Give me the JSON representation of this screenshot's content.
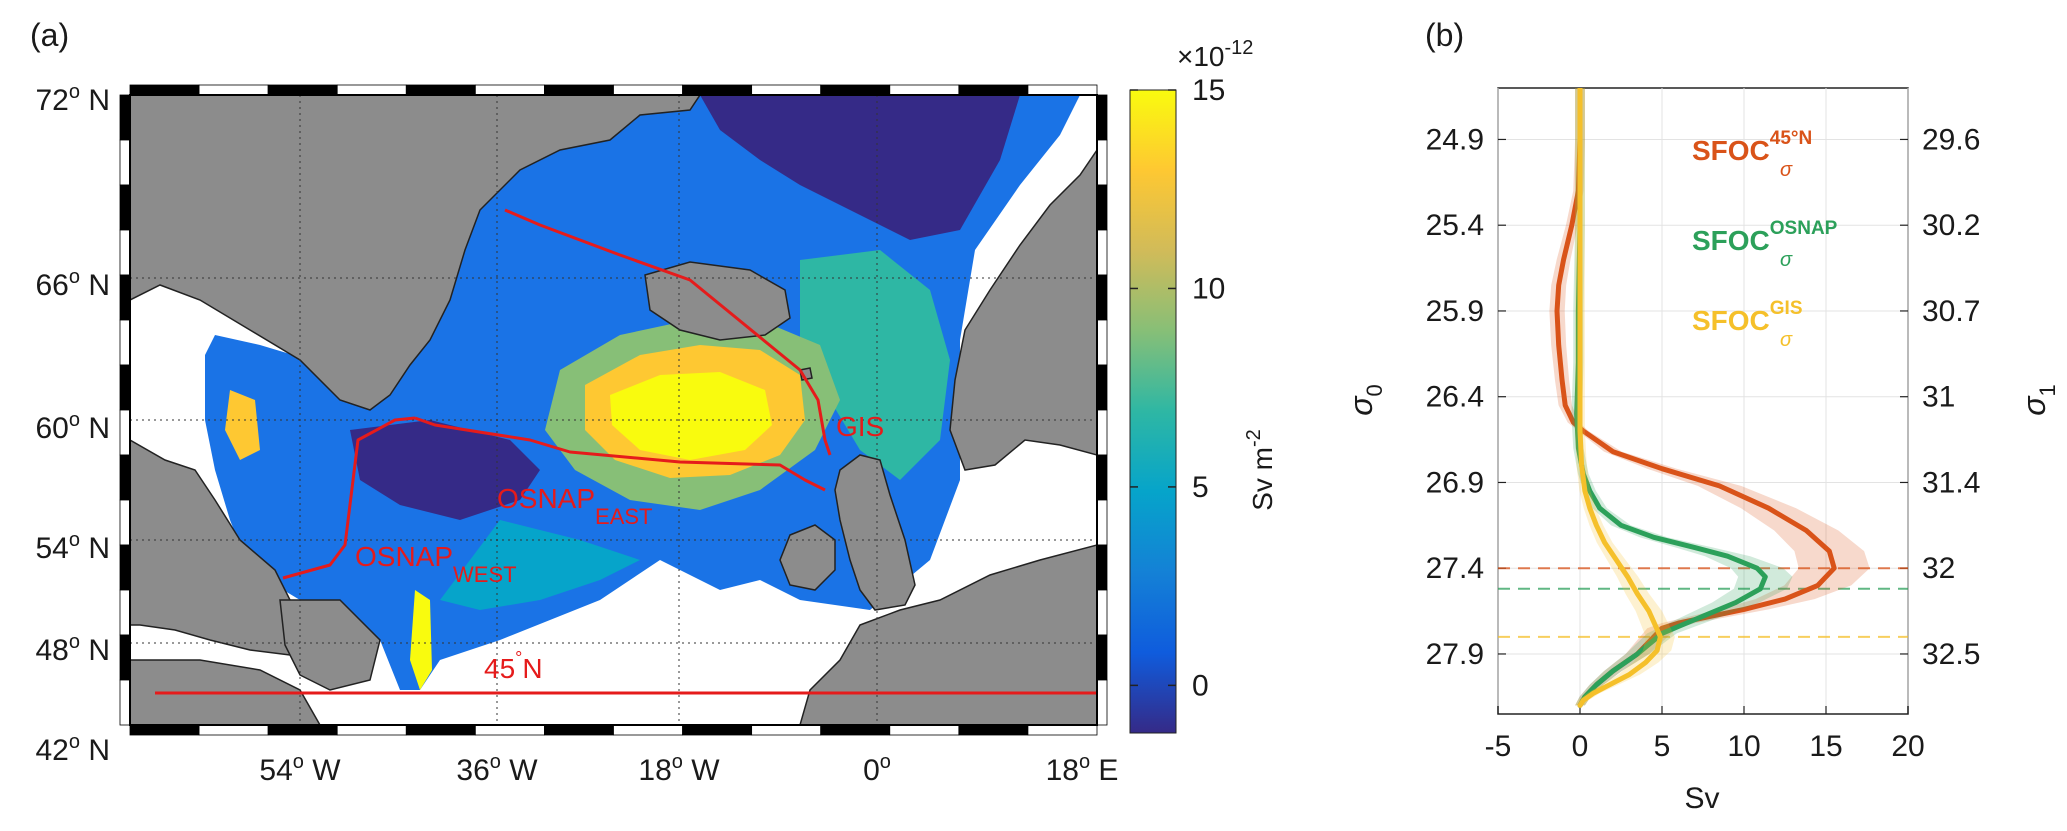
{
  "panel_a": {
    "label": "(a)",
    "lat_ticks": [
      {
        "deg": "72",
        "hemi": "N"
      },
      {
        "deg": "66",
        "hemi": "N"
      },
      {
        "deg": "60",
        "hemi": "N"
      },
      {
        "deg": "54",
        "hemi": "N"
      },
      {
        "deg": "48",
        "hemi": "N"
      },
      {
        "deg": "42",
        "hemi": "N"
      }
    ],
    "lon_ticks": [
      {
        "deg": "54",
        "hemi": "W"
      },
      {
        "deg": "36",
        "hemi": "W"
      },
      {
        "deg": "18",
        "hemi": "W"
      },
      {
        "deg": "0",
        "hemi": ""
      },
      {
        "deg": "18",
        "hemi": "E"
      }
    ],
    "map_labels": {
      "gis": "GIS",
      "osnap": "OSNAP",
      "east": "EAST",
      "west": "WEST",
      "lat45": "45",
      "lat45_suffix": "N"
    },
    "colorbar": {
      "exponent_base": "×10",
      "exponent_power": "-12",
      "ticks": [
        "15",
        "10",
        "5",
        "0"
      ],
      "unit_text": "Sv m",
      "unit_power": "-2",
      "range": [
        -1.2,
        15
      ],
      "colors": [
        "#352a87",
        "#0f5cdd",
        "#1481d6",
        "#06a4ca",
        "#2eb7a4",
        "#87bf77",
        "#d1bb59",
        "#fec832",
        "#f9fb0e"
      ]
    },
    "colors": {
      "land": "#8c8c8c",
      "section_line": "#e51b1b"
    }
  },
  "panel_b": {
    "label": "(b)",
    "xlabel": "Sv",
    "left_axis_label": "σ",
    "left_axis_sub": "0",
    "right_axis_label": "σ",
    "right_axis_sub": "1",
    "legend": [
      {
        "name": "SFOC",
        "sub": "σ",
        "sup": "45°N",
        "color": "#d95319"
      },
      {
        "name": "SFOC",
        "sub": "σ",
        "sup": "OSNAP",
        "color": "#2ca05a"
      },
      {
        "name": "SFOC",
        "sub": "σ",
        "sup": "GIS",
        "color": "#f5c02a"
      }
    ]
  },
  "chart_data": {
    "type": "line",
    "xlabel": "Sv",
    "xlim": [
      -5,
      20
    ],
    "xticks": [
      -5,
      0,
      5,
      10,
      15,
      20
    ],
    "ylabel": "σ0",
    "ylabel_right": "σ1",
    "ylim": [
      24.6,
      28.25
    ],
    "yticks_left": [
      24.9,
      25.4,
      25.9,
      26.4,
      26.9,
      27.4,
      27.9
    ],
    "yticks_right": [
      "29.6",
      "30.2",
      "30.7",
      "31",
      "31.4",
      "32",
      "32.5"
    ],
    "grid": true,
    "legend_placement": "top-right",
    "series": [
      {
        "name": "SFOC45°N",
        "color": "#d95319",
        "x": [
          0,
          0,
          -0.1,
          -0.5,
          -1.0,
          -1.3,
          -1.4,
          -1.3,
          -1.1,
          -0.9,
          -0.4,
          0.2,
          2.0,
          5.0,
          8.5,
          11.5,
          13.8,
          15.2,
          15.5,
          14.5,
          12.5,
          10.0,
          8.0,
          6.0,
          5.0,
          4.5,
          3.5,
          2.0,
          1.0,
          0.3,
          0
        ],
        "y": [
          24.6,
          24.9,
          25.2,
          25.4,
          25.6,
          25.75,
          25.9,
          26.1,
          26.3,
          26.45,
          26.55,
          26.6,
          26.72,
          26.82,
          26.92,
          27.05,
          27.18,
          27.3,
          27.4,
          27.5,
          27.58,
          27.64,
          27.68,
          27.72,
          27.75,
          27.8,
          27.9,
          28.0,
          28.08,
          28.15,
          28.2
        ]
      },
      {
        "name": "SFOCOSNAP",
        "color": "#2ca05a",
        "x": [
          0,
          0,
          -0.1,
          -0.1,
          -0.2,
          -0.1,
          0.2,
          0.6,
          1.2,
          2.5,
          4.5,
          7.0,
          9.0,
          10.8,
          11.3,
          11.0,
          9.5,
          7.5,
          6.0,
          5.0,
          4.5,
          3.5,
          2.0,
          1.0,
          0.3,
          0
        ],
        "y": [
          24.6,
          25.4,
          25.9,
          26.2,
          26.5,
          26.7,
          26.85,
          26.95,
          27.05,
          27.15,
          27.22,
          27.28,
          27.33,
          27.4,
          27.45,
          27.52,
          27.6,
          27.68,
          27.74,
          27.78,
          27.82,
          27.9,
          28.0,
          28.08,
          28.15,
          28.2
        ]
      },
      {
        "name": "SFOCGIS",
        "color": "#f5c02a",
        "x": [
          0,
          0,
          0,
          0,
          0,
          0.1,
          0.3,
          0.6,
          1.0,
          1.5,
          2.2,
          2.9,
          3.5,
          4.2,
          4.9,
          4.7,
          4.0,
          3.0,
          1.8,
          0.8,
          0.2,
          0
        ],
        "y": [
          24.6,
          25.2,
          25.9,
          26.3,
          26.6,
          26.8,
          26.95,
          27.05,
          27.15,
          27.25,
          27.35,
          27.45,
          27.55,
          27.65,
          27.8,
          27.88,
          27.95,
          28.02,
          28.08,
          28.13,
          28.17,
          28.2
        ]
      }
    ],
    "reference_lines": [
      {
        "series": "SFOC45°N",
        "y": 27.4
      },
      {
        "series": "SFOCOSNAP",
        "y": 27.52
      },
      {
        "series": "SFOCGIS",
        "y": 27.8
      }
    ]
  }
}
